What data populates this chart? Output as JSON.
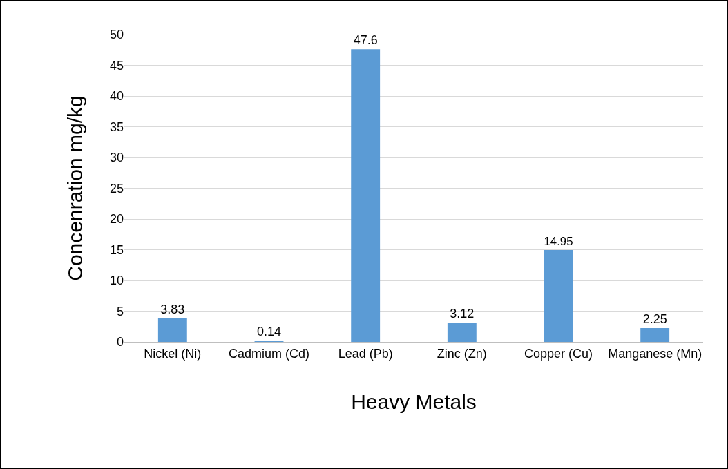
{
  "chart_data": {
    "type": "bar",
    "xlabel": "Heavy Metals",
    "ylabel": "Concenration mg/kg",
    "categories": [
      "Nickel (Ni)",
      "Cadmium (Cd)",
      "Lead (Pb)",
      "Zinc (Zn)",
      "Copper (Cu)",
      "Manganese (Mn)"
    ],
    "values": [
      3.83,
      0.14,
      47.6,
      3.12,
      14.95,
      2.25
    ],
    "color": "#5b9bd5",
    "ylim": [
      0,
      50
    ],
    "yticks": [
      0,
      5,
      10,
      15,
      20,
      25,
      30,
      35,
      40,
      45,
      50
    ],
    "grid": "y",
    "data_labels": true
  }
}
